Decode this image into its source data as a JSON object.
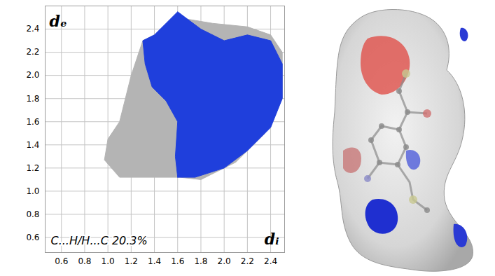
{
  "chart_data": {
    "type": "scatter",
    "x_label": "dᵢ",
    "y_label": "dₑ",
    "annotations": [
      "C...H/H...C 20.3%"
    ],
    "xlim": [
      0.46,
      2.52
    ],
    "ylim": [
      0.47,
      2.6
    ],
    "xticks": [
      0.6,
      0.8,
      {
        "value": 1,
        "label": "1.0"
      },
      1.2,
      1.4,
      1.6,
      1.8,
      {
        "value": 2,
        "label": "2.0"
      },
      2.2,
      2.4
    ],
    "yticks": [
      0.6,
      0.8,
      {
        "value": 1,
        "label": "1.0"
      },
      1.2,
      1.4,
      1.6,
      1.8,
      {
        "value": 2,
        "label": "2.0"
      },
      2.2,
      2.4
    ],
    "grid": true,
    "series": [
      {
        "color": "#b4b4b4",
        "points": [
          [
            0.97,
            1.27
          ],
          [
            1.1,
            1.12
          ],
          [
            1.4,
            1.12
          ],
          [
            1.62,
            1.12
          ],
          [
            1.8,
            1.1
          ],
          [
            2.1,
            1.25
          ],
          [
            2.35,
            1.5
          ],
          [
            2.5,
            1.8
          ],
          [
            2.5,
            2.2
          ],
          [
            2.4,
            2.35
          ],
          [
            2.2,
            2.42
          ],
          [
            1.9,
            2.45
          ],
          [
            1.6,
            2.5
          ],
          [
            1.5,
            2.4
          ],
          [
            1.3,
            2.3
          ],
          [
            1.2,
            2.0
          ],
          [
            1.15,
            1.8
          ],
          [
            1.1,
            1.6
          ],
          [
            1.0,
            1.45
          ]
        ]
      },
      {
        "color": "#1f3fdc",
        "points": [
          [
            1.6,
            1.12
          ],
          [
            1.75,
            1.12
          ],
          [
            2.0,
            1.2
          ],
          [
            2.2,
            1.35
          ],
          [
            2.4,
            1.55
          ],
          [
            2.5,
            1.8
          ],
          [
            2.5,
            2.1
          ],
          [
            2.4,
            2.3
          ],
          [
            2.2,
            2.35
          ],
          [
            2.0,
            2.3
          ],
          [
            1.8,
            2.4
          ],
          [
            1.6,
            2.55
          ],
          [
            1.5,
            2.45
          ],
          [
            1.4,
            2.35
          ],
          [
            1.3,
            2.3
          ],
          [
            1.32,
            2.1
          ],
          [
            1.38,
            1.9
          ],
          [
            1.5,
            1.78
          ],
          [
            1.6,
            1.6
          ],
          [
            1.58,
            1.3
          ]
        ]
      }
    ]
  }
}
